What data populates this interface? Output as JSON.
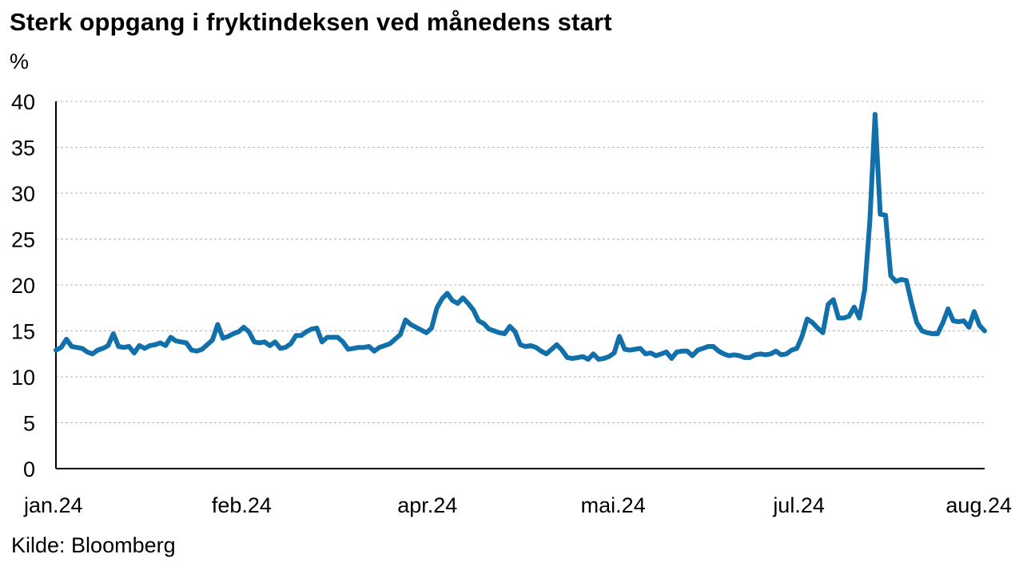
{
  "title": "Sterk oppgang i fryktindeksen ved månedens start",
  "unit_label": "%",
  "source": "Kilde: Bloomberg",
  "chart_data": {
    "type": "line",
    "title": "Sterk oppgang i fryktindeksen ved månedens start",
    "xlabel": "",
    "ylabel": "%",
    "ylim": [
      0,
      40
    ],
    "yticks": [
      0,
      5,
      10,
      15,
      20,
      25,
      30,
      35,
      40
    ],
    "xticks": [
      "jan.24",
      "feb.24",
      "apr.24",
      "mai.24",
      "jul.24",
      "aug.24"
    ],
    "grid": "horizontal dashed",
    "legend": "none",
    "color": "#1170aa",
    "series": [
      {
        "values": [
          12.9,
          13.2,
          14.1,
          13.3,
          13.2,
          13.1,
          12.7,
          12.5,
          12.9,
          13.1,
          13.4,
          14.7,
          13.3,
          13.2,
          13.3,
          12.6,
          13.4,
          13.1,
          13.4,
          13.5,
          13.7,
          13.4,
          14.3,
          13.9,
          13.8,
          13.7,
          12.9,
          12.8,
          13.0,
          13.5,
          14.0,
          15.7,
          14.2,
          14.4,
          14.7,
          14.9,
          15.4,
          14.9,
          13.8,
          13.7,
          13.8,
          13.4,
          13.8,
          13.1,
          13.2,
          13.6,
          14.5,
          14.5,
          14.9,
          15.2,
          15.3,
          13.8,
          14.3,
          14.3,
          14.3,
          13.8,
          13.0,
          13.1,
          13.2,
          13.2,
          13.3,
          12.8,
          13.2,
          13.4,
          13.6,
          14.1,
          14.6,
          16.2,
          15.7,
          15.4,
          15.1,
          14.8,
          15.3,
          17.5,
          18.5,
          19.1,
          18.3,
          18.0,
          18.6,
          18.0,
          17.3,
          16.1,
          15.8,
          15.2,
          15.0,
          14.8,
          14.7,
          15.5,
          14.9,
          13.5,
          13.3,
          13.4,
          13.2,
          12.8,
          12.5,
          13.0,
          13.5,
          12.9,
          12.1,
          12.0,
          12.1,
          12.2,
          11.9,
          12.5,
          11.9,
          12.0,
          12.2,
          12.6,
          14.4,
          13.0,
          12.9,
          13.0,
          13.1,
          12.5,
          12.6,
          12.3,
          12.5,
          12.7,
          12.0,
          12.7,
          12.8,
          12.8,
          12.3,
          12.9,
          13.1,
          13.3,
          13.3,
          12.8,
          12.5,
          12.3,
          12.4,
          12.3,
          12.1,
          12.1,
          12.4,
          12.5,
          12.4,
          12.5,
          12.8,
          12.4,
          12.5,
          12.9,
          13.1,
          14.4,
          16.3,
          15.9,
          15.3,
          14.8,
          17.9,
          18.4,
          16.4,
          16.4,
          16.6,
          17.6,
          16.4,
          19.5,
          27.0,
          38.6,
          27.7,
          27.6,
          21.0,
          20.4,
          20.6,
          20.5,
          18.0,
          15.9,
          15.0,
          14.8,
          14.7,
          14.7,
          15.9,
          17.4,
          16.1,
          16.0,
          16.1,
          15.4,
          17.1,
          15.6,
          15.0
        ]
      }
    ]
  }
}
